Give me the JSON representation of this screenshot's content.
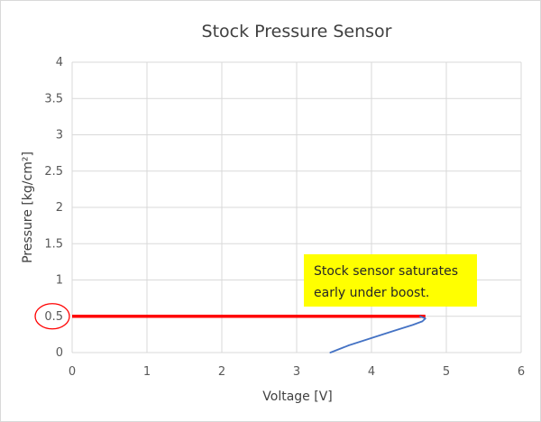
{
  "chart_data": {
    "type": "line",
    "title": "Stock Pressure Sensor",
    "xlabel": "Voltage [V]",
    "ylabel": "Pressure [kg/cm²]",
    "xlim": [
      0,
      6
    ],
    "ylim": [
      0,
      4
    ],
    "x_ticks": [
      "0",
      "1",
      "2",
      "3",
      "4",
      "5",
      "6"
    ],
    "y_ticks": [
      "0",
      "0.5",
      "1",
      "1.5",
      "2",
      "2.5",
      "3",
      "3.5",
      "4"
    ],
    "grid": true,
    "series": [
      {
        "color": "#4472c4",
        "x": [
          3.45,
          3.7,
          4.0,
          4.3,
          4.55,
          4.68,
          4.72,
          4.65
        ],
        "y": [
          0.0,
          0.1,
          0.2,
          0.3,
          0.38,
          0.43,
          0.47,
          0.5
        ]
      }
    ],
    "reference_line": {
      "y": 0.5,
      "x_range": [
        0,
        4.72
      ],
      "color": "#ff0000"
    },
    "highlight": {
      "tick": "0.5",
      "color": "#ff0000"
    },
    "annotation": {
      "lines": [
        "Stock sensor saturates",
        "early under boost."
      ],
      "background": "#ffff00"
    }
  }
}
